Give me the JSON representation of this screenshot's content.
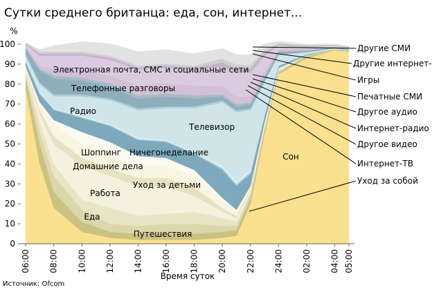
{
  "chart_data": {
    "type": "stacked_area",
    "title": "Сутки среднего британца: еда, сон, интернет...",
    "y_label": "%",
    "x_label": "Время суток",
    "source": "Источник: Ofcom",
    "x": [
      6,
      7,
      8,
      10,
      12,
      14,
      16,
      18,
      20,
      21,
      22,
      23,
      24,
      26,
      28,
      29
    ],
    "xlim": [
      5.65,
      29.4
    ],
    "xticks": [
      {
        "value": 6,
        "label": "06:00"
      },
      {
        "value": 8,
        "label": "08:00"
      },
      {
        "value": 10,
        "label": "10:00"
      },
      {
        "value": 12,
        "label": "12:00"
      },
      {
        "value": 14,
        "label": "14:00"
      },
      {
        "value": 16,
        "label": "16:00"
      },
      {
        "value": 18,
        "label": "18:00"
      },
      {
        "value": 20,
        "label": "20:00"
      },
      {
        "value": 22,
        "label": "22:00"
      },
      {
        "value": 24,
        "label": "24:00"
      },
      {
        "value": 26,
        "label": "02:00"
      },
      {
        "value": 28,
        "label": "04:00"
      },
      {
        "value": 29,
        "label": "05:00"
      }
    ],
    "ylim": [
      0,
      100
    ],
    "yticks": [
      0,
      10,
      20,
      30,
      40,
      50,
      60,
      70,
      80,
      90,
      100
    ],
    "series": [
      {
        "name": "Сон",
        "color": "#fbe08e",
        "values": [
          78,
          40,
          18,
          6,
          3,
          2,
          2,
          2,
          3,
          4,
          20,
          55,
          85,
          93,
          97,
          96
        ]
      },
      {
        "name": "Уход за собой",
        "color": "#c9c283",
        "values": [
          5,
          10,
          8,
          5,
          3,
          3,
          3,
          3,
          3,
          3,
          3,
          2,
          1,
          1,
          0.5,
          0.5
        ]
      },
      {
        "name": "Путешествия",
        "color": "#dcd6ab",
        "values": [
          2,
          6,
          8,
          6,
          4,
          4,
          5,
          5,
          3,
          2,
          2,
          1,
          0.5,
          0.5,
          0,
          0
        ]
      },
      {
        "name": "Еда",
        "color": "#e8e4c4",
        "values": [
          1,
          5,
          6,
          5,
          8,
          5,
          5,
          6,
          4,
          2,
          1,
          1,
          0.5,
          0,
          0,
          0
        ]
      },
      {
        "name": "Работа",
        "color": "#f4f1de",
        "values": [
          1,
          4,
          10,
          17,
          16,
          15,
          14,
          8,
          3,
          2,
          1,
          1,
          0.5,
          0,
          0,
          0
        ]
      },
      {
        "name": "Уход за детьми",
        "color": "#e6e1c0",
        "values": [
          1,
          2,
          4,
          4,
          4,
          4,
          4,
          4,
          2,
          1,
          0.5,
          0.5,
          0,
          0,
          0,
          0
        ]
      },
      {
        "name": "Домашние дела",
        "color": "#f8f5e3",
        "values": [
          1,
          3,
          6,
          7,
          7,
          6,
          6,
          6,
          4,
          2,
          1,
          0.5,
          0.5,
          0,
          0,
          0
        ]
      },
      {
        "name": "Шоппинг",
        "color": "#fcfbf2",
        "values": [
          0,
          1,
          2,
          6,
          6,
          5,
          4,
          3,
          1,
          1,
          0.5,
          0,
          0,
          0,
          0,
          0
        ]
      },
      {
        "name": "Ничегонеделание",
        "color": "#7ea9bd",
        "values": [
          2,
          4,
          5,
          7,
          8,
          8,
          8,
          8,
          14,
          12,
          6,
          3,
          1,
          0.5,
          0,
          0
        ]
      },
      {
        "name": "Интернет-ТВ",
        "color": "#a9cbd6",
        "values": [
          0.5,
          0.5,
          0.5,
          0.5,
          0.5,
          0.5,
          0.5,
          0.5,
          1,
          1,
          1,
          0.5,
          0.3,
          0,
          0,
          0
        ]
      },
      {
        "name": "Другое видео",
        "color": "#e4f1f3",
        "values": [
          0.5,
          0.5,
          0.5,
          0.5,
          0.5,
          0.5,
          0.5,
          0.5,
          1,
          1,
          1,
          0.5,
          0.3,
          0,
          0,
          0
        ]
      },
      {
        "name": "Телевизор",
        "color": "#cfe5ea",
        "values": [
          2,
          4,
          6,
          10,
          12,
          14,
          16,
          22,
          32,
          35,
          30,
          16,
          5,
          1,
          0.5,
          0.5
        ]
      },
      {
        "name": "Интернет-радио",
        "color": "#9cc3cf",
        "values": [
          0.3,
          0.3,
          0.3,
          0.3,
          0.3,
          0.3,
          0.3,
          0.3,
          0.3,
          0.3,
          0.3,
          0.3,
          0.2,
          0,
          0,
          0
        ]
      },
      {
        "name": "Другое аудио",
        "color": "#b9d5dc",
        "values": [
          0.5,
          0.5,
          0.5,
          0.5,
          0.5,
          0.5,
          0.5,
          0.5,
          0.5,
          0.5,
          0.5,
          0.5,
          0.2,
          0,
          0,
          0
        ]
      },
      {
        "name": "Радио",
        "color": "#8faebb",
        "values": [
          3,
          6,
          8,
          7,
          6,
          5,
          5,
          4,
          2,
          2,
          2,
          1.5,
          1,
          0.5,
          0.5,
          0.5
        ]
      },
      {
        "name": "Печатные СМИ",
        "color": "#a6bcc6",
        "values": [
          0.5,
          1,
          1.5,
          1.5,
          1.5,
          1.5,
          1.5,
          1.5,
          1,
          1,
          1,
          1,
          0.5,
          0.5,
          0,
          0
        ]
      },
      {
        "name": "Телефонные разговоры",
        "color": "#d3bfd6",
        "values": [
          0.5,
          1.5,
          3,
          4,
          4,
          5,
          5,
          5,
          4,
          4,
          3,
          2,
          1,
          0.5,
          0.3,
          0.3
        ]
      },
      {
        "name": "Электронная почта, СМС и социальные сети",
        "color": "#dccbe0",
        "values": [
          1,
          5,
          7,
          7,
          8,
          8,
          8,
          8,
          10,
          12,
          12,
          8,
          2,
          1,
          0.5,
          0.5
        ]
      },
      {
        "name": "Игры",
        "color": "#c4b3c9",
        "values": [
          0.5,
          1,
          1,
          1,
          1,
          1,
          1,
          1,
          2,
          2,
          2,
          1.5,
          0.5,
          0.5,
          0.2,
          0.2
        ]
      },
      {
        "name": "Другие интернет-СМИ",
        "color": "#cfcfcf",
        "values": [
          0.5,
          1,
          1,
          1,
          1,
          1,
          1,
          1,
          2,
          2,
          2,
          1.5,
          0.5,
          0.5,
          0.3,
          0.3
        ]
      },
      {
        "name": "Другие СМИ",
        "color": "#e2e2e2",
        "values": [
          0,
          1,
          3,
          5,
          6,
          7,
          7,
          6,
          5,
          5,
          5,
          3,
          1,
          0.5,
          0.3,
          0.3
        ]
      }
    ]
  }
}
